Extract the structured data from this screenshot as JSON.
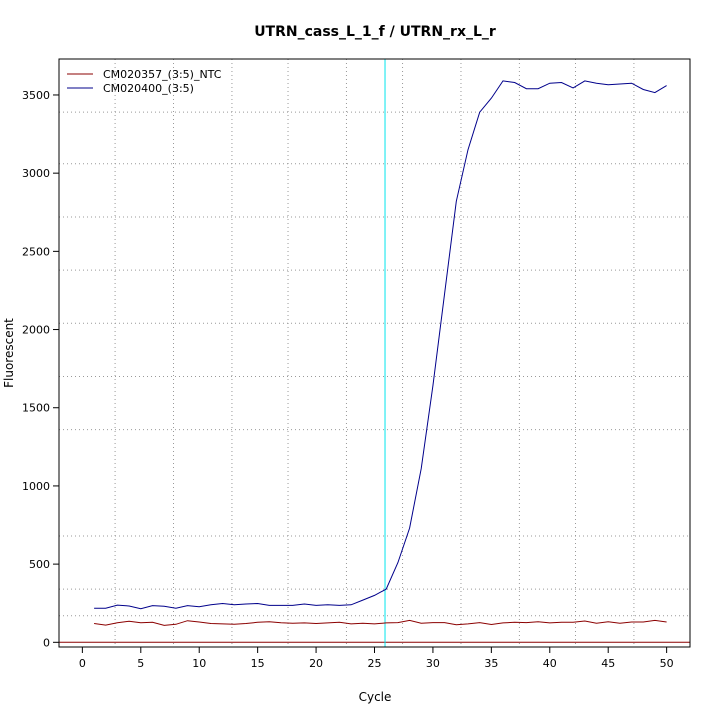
{
  "chart_data": {
    "type": "line",
    "title": "UTRN_cass_L_1_f / UTRN_rx_L_r",
    "xlabel": "Cycle",
    "ylabel": "Fluorescent",
    "xlim": [
      -2,
      52
    ],
    "ylim": [
      -30,
      3730
    ],
    "x_ticks": [
      0,
      5,
      10,
      15,
      20,
      25,
      30,
      35,
      40,
      45,
      50
    ],
    "y_ticks": [
      0,
      500,
      1000,
      1500,
      2000,
      2500,
      3000,
      3500
    ],
    "x_grid": [
      2.8,
      7.8,
      12.8,
      17.6,
      22.6,
      27.4,
      32.4,
      37.4,
      42.2,
      47.2
    ],
    "y_grid": [
      170,
      340,
      680,
      1360,
      1700,
      2040,
      2380,
      2720,
      3060,
      3390
    ],
    "threshold_cycle": 25.9,
    "legend_position": "top-left",
    "legend": [
      {
        "label": "CM020357_(3:5)_NTC",
        "color": "#8b0000"
      },
      {
        "label": "CM020400_(3:5)",
        "color": "#00008b"
      }
    ],
    "colors": {
      "threshold": "#00e5ee",
      "baseline": "#8b0000",
      "grid": "#999999"
    },
    "x": [
      1,
      2,
      3,
      4,
      5,
      6,
      7,
      8,
      9,
      10,
      11,
      12,
      13,
      14,
      15,
      16,
      17,
      18,
      19,
      20,
      21,
      22,
      23,
      24,
      25,
      26,
      27,
      28,
      29,
      30,
      31,
      32,
      33,
      34,
      35,
      36,
      37,
      38,
      39,
      40,
      41,
      42,
      43,
      44,
      45,
      46,
      47,
      48,
      49,
      50
    ],
    "series": [
      {
        "name": "CM020357_(3:5)_NTC",
        "color": "#8b0000",
        "values": [
          120,
          110,
          125,
          135,
          125,
          128,
          108,
          115,
          138,
          130,
          120,
          118,
          115,
          120,
          128,
          132,
          125,
          122,
          124,
          120,
          124,
          128,
          118,
          122,
          118,
          124,
          126,
          140,
          122,
          126,
          126,
          112,
          118,
          126,
          114,
          124,
          128,
          126,
          132,
          124,
          128,
          128,
          136,
          122,
          132,
          122,
          130,
          130,
          140,
          130
        ]
      },
      {
        "name": "CM020400_(3:5)",
        "color": "#00008b",
        "values": [
          218,
          218,
          238,
          232,
          215,
          235,
          230,
          218,
          235,
          228,
          240,
          248,
          240,
          245,
          248,
          236,
          236,
          236,
          245,
          236,
          240,
          236,
          240,
          270,
          300,
          340,
          510,
          730,
          1110,
          1640,
          2230,
          2820,
          3150,
          3390,
          3480,
          3590,
          3580,
          3540,
          3540,
          3575,
          3580,
          3545,
          3590,
          3575,
          3565,
          3570,
          3575,
          3535,
          3515,
          3560
        ]
      }
    ]
  }
}
